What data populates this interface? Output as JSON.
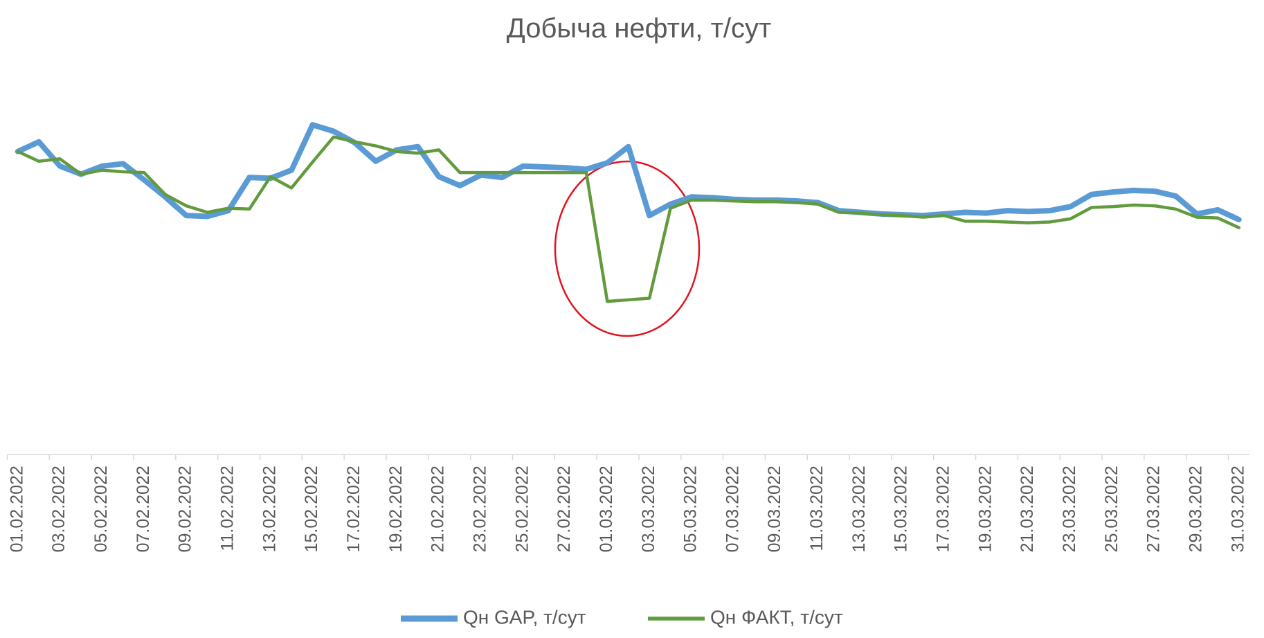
{
  "chart_data": {
    "type": "line",
    "title": "Добыча нефти, т/сут",
    "categories": [
      "01.02.2022",
      null,
      "03.02.2022",
      null,
      "05.02.2022",
      null,
      "07.02.2022",
      null,
      "09.02.2022",
      null,
      "11.02.2022",
      null,
      "13.02.2022",
      null,
      "15.02.2022",
      null,
      "17.02.2022",
      null,
      "19.02.2022",
      null,
      "21.02.2022",
      null,
      "23.02.2022",
      null,
      "25.02.2022",
      null,
      "27.02.2022",
      null,
      "01.03.2022",
      null,
      "03.03.2022",
      null,
      "05.03.2022",
      null,
      "07.03.2022",
      null,
      "09.03.2022",
      null,
      "11.03.2022",
      null,
      "13.03.2022",
      null,
      "15.03.2022",
      null,
      "17.03.2022",
      null,
      "19.03.2022",
      null,
      "21.03.2022",
      null,
      "23.03.2022",
      null,
      "25.03.2022",
      null,
      "27.03.2022",
      null,
      "29.03.2022",
      null,
      "31.03.2022"
    ],
    "series": [
      {
        "name": "Qн GAP, т/сут",
        "color": "#5b9bd5",
        "values": [
          374,
          386,
          356,
          346,
          356,
          359,
          339,
          318,
          295,
          294,
          301,
          342,
          341,
          351,
          407,
          399,
          385,
          362,
          376,
          380,
          343,
          332,
          345,
          342,
          356,
          355,
          354,
          352,
          360,
          380,
          295,
          309,
          318,
          317,
          315,
          314,
          314,
          313,
          311,
          301,
          299,
          297,
          296,
          295,
          297,
          299,
          298,
          301,
          300,
          301,
          306,
          321,
          324,
          326,
          325,
          319,
          297,
          302,
          290
        ]
      },
      {
        "name": "Qн ФАКТ, т/сут",
        "color": "#629b3e",
        "values": [
          374,
          362,
          365,
          346,
          351,
          349,
          348,
          321,
          307,
          299,
          304,
          303,
          343,
          329,
          361,
          392,
          386,
          381,
          374,
          372,
          376,
          348,
          348,
          348,
          348,
          348,
          348,
          348,
          189,
          191,
          193,
          304,
          314,
          314,
          313,
          312,
          312,
          311,
          309,
          299,
          298,
          296,
          295,
          293,
          295,
          288,
          288,
          287,
          286,
          287,
          291,
          305,
          306,
          308,
          307,
          303,
          293,
          292,
          280
        ]
      }
    ],
    "ylim": [
      0,
      480
    ]
  }
}
